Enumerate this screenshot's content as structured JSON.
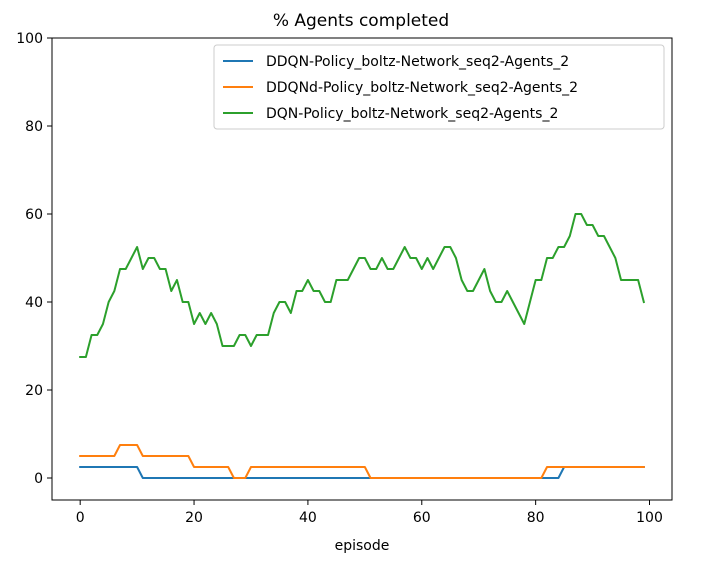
{
  "chart_data": {
    "type": "line",
    "title": "% Agents completed",
    "xlabel": "episode",
    "ylabel": "",
    "xlim": [
      -4.95,
      103.95
    ],
    "ylim": [
      -5,
      100
    ],
    "xticks": [
      0,
      20,
      40,
      60,
      80,
      100
    ],
    "yticks": [
      0,
      20,
      40,
      60,
      80,
      100
    ],
    "grid": false,
    "legend_position": "upper-right",
    "series": [
      {
        "name": "DDQN-Policy_boltz-Network_seq2-Agents_2",
        "color": "#1f77b4",
        "x": [
          0,
          10,
          11,
          84,
          85,
          99
        ],
        "y": [
          2.5,
          2.5,
          0,
          0,
          2.5,
          2.5
        ]
      },
      {
        "name": "DDQNd-Policy_boltz-Network_seq2-Agents_2",
        "color": "#ff7f0e",
        "x": [
          0,
          6,
          7,
          10,
          11,
          19,
          20,
          26,
          27,
          29,
          30,
          50,
          51,
          81,
          82,
          99
        ],
        "y": [
          5,
          5,
          7.5,
          7.5,
          5,
          5,
          2.5,
          2.5,
          0,
          0,
          2.5,
          2.5,
          0,
          0,
          2.5,
          2.5
        ]
      },
      {
        "name": "DQN-Policy_boltz-Network_seq2-Agents_2",
        "color": "#2ca02c",
        "x": [
          0,
          1,
          2,
          3,
          4,
          5,
          6,
          7,
          8,
          9,
          10,
          11,
          12,
          13,
          14,
          15,
          16,
          17,
          18,
          19,
          20,
          21,
          22,
          23,
          24,
          25,
          26,
          27,
          28,
          29,
          30,
          31,
          32,
          33,
          34,
          35,
          36,
          37,
          38,
          39,
          40,
          41,
          42,
          43,
          44,
          45,
          46,
          47,
          48,
          49,
          50,
          51,
          52,
          53,
          54,
          55,
          56,
          57,
          58,
          59,
          60,
          61,
          62,
          63,
          64,
          65,
          66,
          67,
          68,
          69,
          70,
          71,
          72,
          73,
          74,
          75,
          76,
          77,
          78,
          79,
          80,
          81,
          82,
          83,
          84,
          85,
          86,
          87,
          88,
          89,
          90,
          91,
          92,
          93,
          94,
          95,
          96,
          97,
          98,
          99
        ],
        "y": [
          27.5,
          27.5,
          32.5,
          32.5,
          35,
          40,
          42.5,
          47.5,
          47.5,
          50,
          52.5,
          47.5,
          50,
          50,
          47.5,
          47.5,
          42.5,
          45,
          40,
          40,
          35,
          37.5,
          35,
          37.5,
          35,
          30,
          30,
          30,
          32.5,
          32.5,
          30,
          32.5,
          32.5,
          32.5,
          37.5,
          40,
          40,
          37.5,
          42.5,
          42.5,
          45,
          42.5,
          42.5,
          40,
          40,
          45,
          45,
          45,
          47.5,
          50,
          50,
          47.5,
          47.5,
          50,
          47.5,
          47.5,
          50,
          52.5,
          50,
          50,
          47.5,
          50,
          47.5,
          50,
          52.5,
          52.5,
          50,
          45,
          42.5,
          42.5,
          45,
          47.5,
          42.5,
          40,
          40,
          42.5,
          40,
          37.5,
          35,
          40,
          45,
          45,
          50,
          50,
          52.5,
          52.5,
          55,
          60,
          60,
          57.5,
          57.5,
          55,
          55,
          52.5,
          50,
          45,
          45,
          45,
          45,
          40
        ]
      }
    ]
  }
}
